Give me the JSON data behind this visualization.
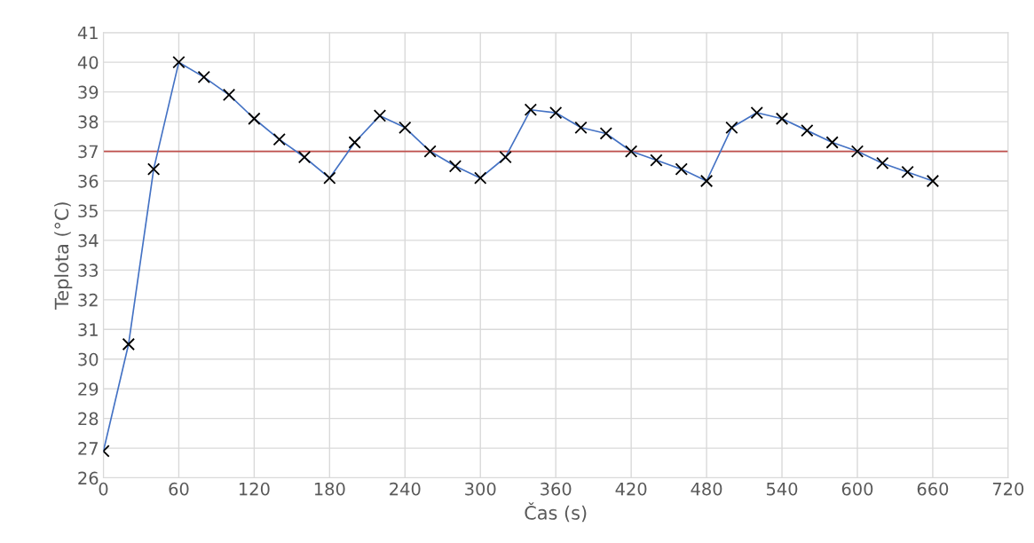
{
  "chart_data": {
    "type": "line",
    "xlabel": "Čas (s)",
    "ylabel": "Teplota (°C)",
    "x": [
      0,
      20,
      40,
      60,
      80,
      100,
      120,
      140,
      160,
      180,
      200,
      220,
      240,
      260,
      280,
      300,
      320,
      340,
      360,
      380,
      400,
      420,
      440,
      460,
      480,
      500,
      520,
      540,
      560,
      580,
      600,
      620,
      640,
      660
    ],
    "series": [
      {
        "color": "#4472c4",
        "values": [
          26.9,
          30.5,
          36.4,
          40.0,
          39.5,
          38.9,
          38.1,
          37.4,
          36.8,
          36.1,
          37.3,
          38.2,
          37.8,
          37.0,
          36.5,
          36.1,
          36.8,
          38.4,
          38.3,
          37.8,
          37.6,
          37.0,
          36.7,
          36.4,
          36.0,
          37.8,
          38.3,
          38.1,
          37.7,
          37.3,
          37.0,
          36.6,
          36.3,
          36.0
        ]
      }
    ],
    "marker": "cross",
    "line_style": "solid",
    "grid": true,
    "xlim": [
      0,
      720
    ],
    "xticks": [
      0,
      60,
      120,
      180,
      240,
      300,
      360,
      420,
      480,
      540,
      600,
      660,
      720
    ],
    "ylim": [
      26,
      41
    ],
    "yticks": [
      26,
      27,
      28,
      29,
      30,
      31,
      32,
      33,
      34,
      35,
      36,
      37,
      38,
      39,
      40,
      41
    ],
    "ref_lines": [
      {
        "axis": "y",
        "value": 37,
        "color": "#c0504d"
      }
    ]
  }
}
